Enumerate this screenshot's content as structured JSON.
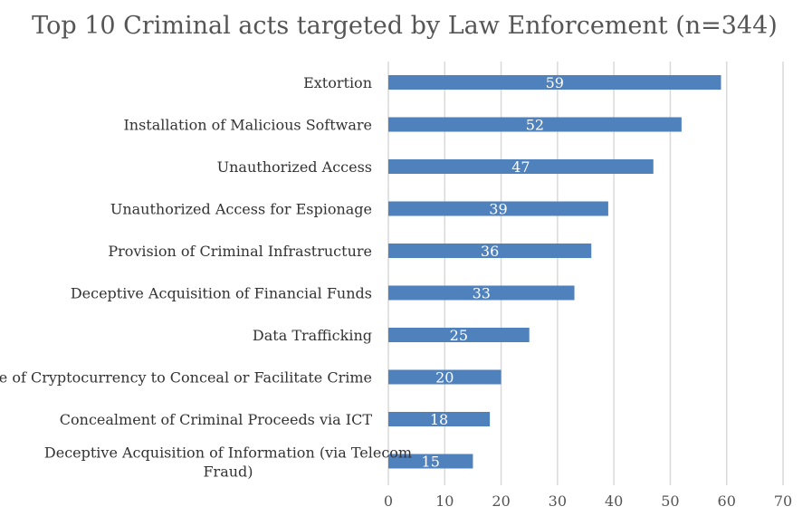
{
  "chart_data": {
    "type": "bar",
    "orientation": "horizontal",
    "title": "Top 10 Criminal acts targeted by Law Enforcement (n=344)",
    "xlabel": "",
    "ylabel": "",
    "xlim": [
      0,
      70
    ],
    "xticks": [
      0,
      10,
      20,
      30,
      40,
      50,
      60,
      70
    ],
    "grid": true,
    "legend": "none",
    "bar_color": "#4f81bd",
    "categories": [
      [
        "Extortion"
      ],
      [
        "Installation of Malicious Software"
      ],
      [
        "Unauthorized Access"
      ],
      [
        "Unauthorized Access for Espionage"
      ],
      [
        "Provision of Criminal Infrastructure"
      ],
      [
        "Deceptive Acquisition of Financial Funds"
      ],
      [
        "Data Trafficking"
      ],
      [
        "Use of Cryptocurrency to Conceal or Facilitate Crime"
      ],
      [
        "Concealment of Criminal Proceeds via ICT"
      ],
      [
        "Deceptive Acquisition of Information (via Telecom",
        "Fraud)"
      ]
    ],
    "values": [
      59,
      52,
      47,
      39,
      36,
      33,
      25,
      20,
      18,
      15
    ]
  }
}
